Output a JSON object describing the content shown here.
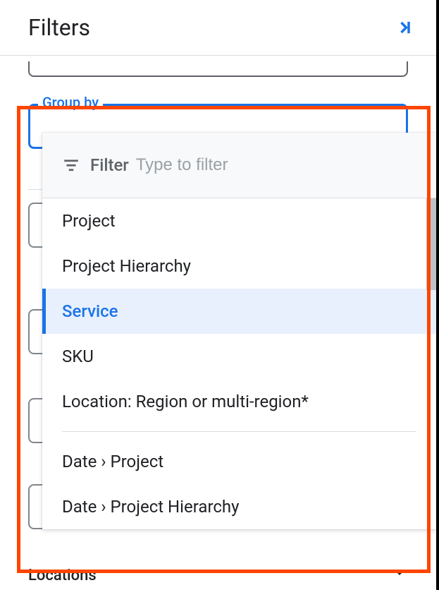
{
  "header": {
    "title": "Filters"
  },
  "group_by": {
    "label": "Group by"
  },
  "dropdown": {
    "filter_label": "Filter",
    "filter_placeholder": "Type to filter",
    "options_group1": [
      "Project",
      "Project Hierarchy",
      "Service",
      "SKU",
      "Location: Region or multi-region*"
    ],
    "selected_index": 2,
    "options_group2": [
      "Date › Project",
      "Date › Project Hierarchy"
    ]
  },
  "background": {
    "locations_label": "Locations"
  },
  "colors": {
    "accent": "#1a73e8",
    "highlight_border": "#ff4500",
    "text_primary": "#202124",
    "text_secondary": "#5f6368",
    "selected_bg": "#e8f0fe",
    "divider": "#dadce0"
  }
}
